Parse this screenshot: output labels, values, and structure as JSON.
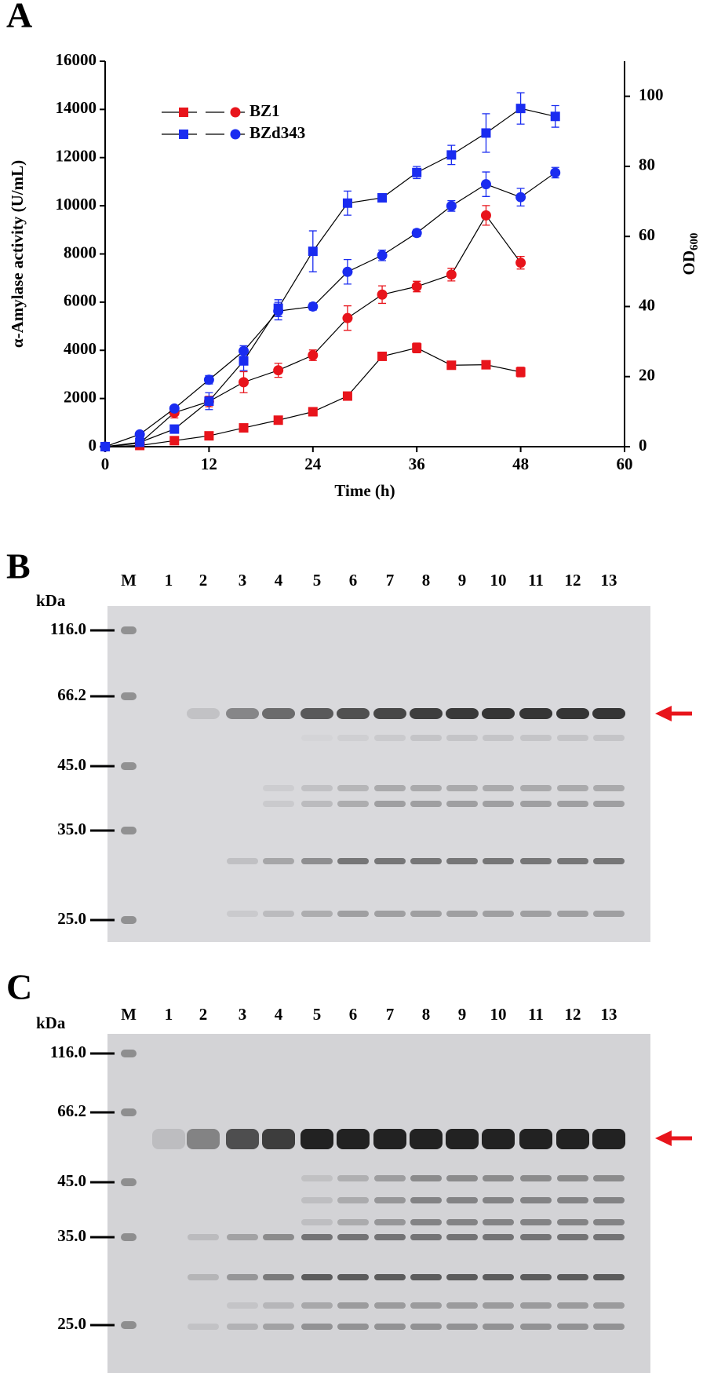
{
  "panel_label": "A",
  "chart_data": {
    "type": "line",
    "xlabel": "Time (h)",
    "ylabel": "α-Amylase activity (U/mL)",
    "y2label": {
      "text": "OD",
      "subscript": "600"
    },
    "xlim": [
      0,
      60
    ],
    "xticks": [
      0,
      12,
      24,
      36,
      48,
      60
    ],
    "ylim": [
      0,
      16000
    ],
    "yticks": [
      0,
      2000,
      4000,
      6000,
      8000,
      10000,
      12000,
      14000,
      16000
    ],
    "y2lim": [
      0,
      110
    ],
    "y2ticks": [
      0,
      20,
      40,
      60,
      80,
      100
    ],
    "legend": "upper left",
    "series": [
      {
        "name": "BZ1",
        "color": "#e8141b",
        "marker": "square",
        "axis": "y",
        "x": [
          0,
          4,
          8,
          12,
          16,
          20,
          24,
          28,
          32,
          36,
          40,
          44,
          48
        ],
        "values": [
          0,
          50,
          250,
          450,
          780,
          1100,
          1450,
          2100,
          3750,
          4100,
          3380,
          3400,
          3100
        ],
        "errors": [
          null,
          null,
          null,
          null,
          null,
          null,
          80,
          150,
          100,
          200,
          100,
          100,
          200
        ]
      },
      {
        "color": "#e8141b",
        "marker": "circle",
        "axis": "y2",
        "x": [
          0,
          4,
          8,
          12,
          16,
          20,
          24,
          28,
          32,
          36,
          40,
          44,
          48
        ],
        "values": [
          0,
          1,
          9.7,
          12.9,
          18.4,
          21.8,
          26.1,
          36.7,
          43.4,
          45.7,
          49.1,
          66,
          52.5
        ],
        "errors": [
          null,
          null,
          1.5,
          1.5,
          3,
          2,
          1.5,
          3.5,
          2.5,
          1.5,
          1.8,
          2.8,
          1.8
        ]
      },
      {
        "name": "BZd343",
        "color": "#1a2cf0",
        "marker": "square",
        "axis": "y",
        "x": [
          0,
          4,
          8,
          12,
          16,
          20,
          24,
          28,
          32,
          36,
          40,
          44,
          48,
          52
        ],
        "values": [
          0,
          180,
          730,
          1890,
          3560,
          5750,
          8110,
          10110,
          10330,
          11380,
          12110,
          13020,
          14040,
          13710
        ],
        "errors": [
          null,
          null,
          null,
          350,
          400,
          350,
          850,
          500,
          150,
          250,
          400,
          800,
          650,
          450
        ]
      },
      {
        "color": "#1a2cf0",
        "marker": "circle",
        "axis": "y2",
        "x": [
          0,
          4,
          8,
          12,
          16,
          20,
          24,
          28,
          32,
          36,
          40,
          44,
          48,
          52
        ],
        "values": [
          0,
          3.5,
          10.9,
          19.1,
          27.3,
          38.7,
          40,
          49.9,
          54.6,
          61,
          68.7,
          74.9,
          71.2,
          78.2
        ],
        "errors": [
          null,
          null,
          null,
          1.2,
          1.5,
          2.5,
          1,
          3.5,
          1.5,
          1,
          1.5,
          3.5,
          2.5,
          1.5
        ]
      }
    ]
  },
  "gels": [
    {
      "panel_label": "B",
      "unit": "kDa",
      "lanes": [
        "M",
        "1",
        "2",
        "3",
        "4",
        "5",
        "6",
        "7",
        "8",
        "9",
        "10",
        "11",
        "12",
        "13"
      ],
      "markers": [
        "116.0",
        "66.2",
        "45.0",
        "35.0",
        "25.0"
      ]
    },
    {
      "panel_label": "C",
      "unit": "kDa",
      "lanes": [
        "M",
        "1",
        "2",
        "3",
        "4",
        "5",
        "6",
        "7",
        "8",
        "9",
        "10",
        "11",
        "12",
        "13"
      ],
      "markers": [
        "116.0",
        "66.2",
        "45.0",
        "35.0",
        "25.0"
      ]
    }
  ]
}
